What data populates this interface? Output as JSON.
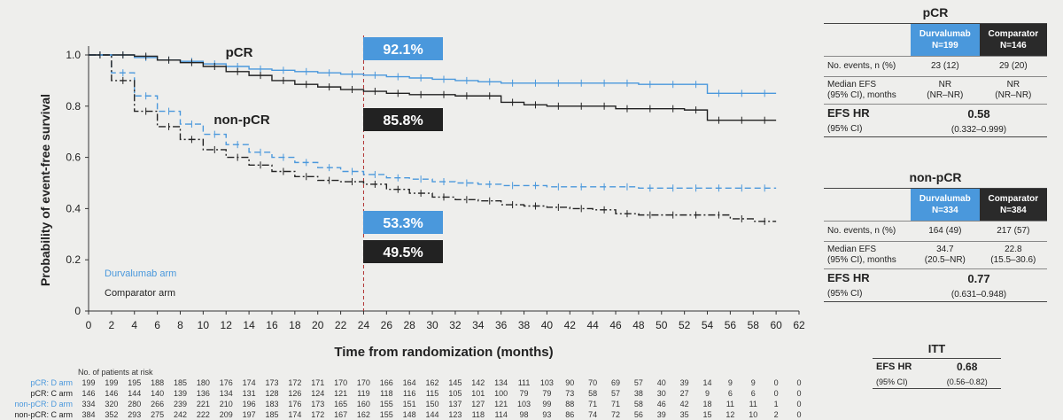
{
  "chart_data": {
    "type": "line",
    "xlabel": "Time from randomization (months)",
    "ylabel": "Probability of event-free survival",
    "xlim": [
      0,
      62
    ],
    "ylim": [
      0,
      1.0
    ],
    "x_ticks": [
      "0",
      "2",
      "4",
      "6",
      "8",
      "10",
      "12",
      "14",
      "16",
      "18",
      "20",
      "22",
      "24",
      "26",
      "28",
      "30",
      "32",
      "34",
      "36",
      "38",
      "40",
      "42",
      "44",
      "46",
      "48",
      "50",
      "52",
      "54",
      "56",
      "58",
      "60",
      "62"
    ],
    "y_ticks": [
      "0",
      "0.2",
      "0.4",
      "0.6",
      "0.8",
      "1.0"
    ],
    "reference_x": 24,
    "group_labels": {
      "pcr": "pCR",
      "nonpcr": "non-pCR"
    },
    "legend": {
      "durvalumab": "Durvalumab arm",
      "comparator": "Comparator arm"
    },
    "colors": {
      "durvalumab": "#4a98dc",
      "comparator": "#222222"
    },
    "callouts": [
      {
        "text": "92.1%",
        "arm": "durvalumab",
        "group": "pCR"
      },
      {
        "text": "85.8%",
        "arm": "comparator",
        "group": "pCR"
      },
      {
        "text": "53.3%",
        "arm": "durvalumab",
        "group": "non-pCR"
      },
      {
        "text": "49.5%",
        "arm": "comparator",
        "group": "non-pCR"
      }
    ],
    "series": [
      {
        "name": "pCR: D arm",
        "arm": "durvalumab",
        "style": "solid",
        "x": [
          0,
          2,
          4,
          6,
          8,
          10,
          12,
          14,
          16,
          18,
          20,
          22,
          24,
          26,
          28,
          30,
          32,
          34,
          36,
          38,
          40,
          42,
          44,
          46,
          48,
          50,
          52,
          54,
          56,
          58,
          60
        ],
        "y": [
          1.0,
          1.0,
          0.99,
          0.98,
          0.975,
          0.965,
          0.955,
          0.945,
          0.94,
          0.935,
          0.93,
          0.925,
          0.921,
          0.915,
          0.91,
          0.905,
          0.9,
          0.895,
          0.89,
          0.89,
          0.89,
          0.89,
          0.89,
          0.89,
          0.885,
          0.885,
          0.885,
          0.85,
          0.85,
          0.85,
          0.85
        ]
      },
      {
        "name": "pCR: C arm",
        "arm": "comparator",
        "style": "solid",
        "x": [
          0,
          2,
          4,
          6,
          8,
          10,
          12,
          14,
          16,
          18,
          20,
          22,
          24,
          26,
          28,
          30,
          32,
          34,
          36,
          38,
          40,
          42,
          44,
          46,
          48,
          50,
          52,
          54,
          56,
          58,
          60
        ],
        "y": [
          1.0,
          1.0,
          0.995,
          0.98,
          0.97,
          0.955,
          0.935,
          0.92,
          0.9,
          0.885,
          0.875,
          0.865,
          0.858,
          0.85,
          0.845,
          0.845,
          0.84,
          0.84,
          0.815,
          0.805,
          0.8,
          0.8,
          0.8,
          0.79,
          0.79,
          0.79,
          0.785,
          0.745,
          0.745,
          0.745,
          0.745
        ]
      },
      {
        "name": "non-pCR: D arm",
        "arm": "durvalumab",
        "style": "dashed",
        "x": [
          0,
          2,
          4,
          6,
          8,
          10,
          12,
          14,
          16,
          18,
          20,
          22,
          24,
          26,
          28,
          30,
          32,
          34,
          36,
          38,
          40,
          42,
          44,
          46,
          48,
          50,
          52,
          54,
          56,
          58,
          60
        ],
        "y": [
          1.0,
          0.93,
          0.84,
          0.78,
          0.73,
          0.69,
          0.65,
          0.62,
          0.6,
          0.58,
          0.56,
          0.545,
          0.533,
          0.52,
          0.515,
          0.505,
          0.5,
          0.495,
          0.49,
          0.49,
          0.485,
          0.485,
          0.485,
          0.485,
          0.48,
          0.48,
          0.48,
          0.48,
          0.48,
          0.48,
          0.48
        ]
      },
      {
        "name": "non-pCR: C arm",
        "arm": "comparator",
        "style": "dashdot",
        "x": [
          0,
          2,
          4,
          6,
          8,
          10,
          12,
          14,
          16,
          18,
          20,
          22,
          24,
          26,
          28,
          30,
          32,
          34,
          36,
          38,
          40,
          42,
          44,
          46,
          48,
          50,
          52,
          54,
          56,
          58,
          60
        ],
        "y": [
          1.0,
          0.9,
          0.78,
          0.72,
          0.67,
          0.63,
          0.6,
          0.57,
          0.545,
          0.525,
          0.51,
          0.505,
          0.495,
          0.475,
          0.46,
          0.445,
          0.435,
          0.43,
          0.415,
          0.41,
          0.405,
          0.4,
          0.395,
          0.38,
          0.375,
          0.375,
          0.375,
          0.375,
          0.36,
          0.35,
          0.35
        ]
      }
    ],
    "risk_table": {
      "title": "No. of patients at risk",
      "rows": [
        {
          "label": "pCR: D arm",
          "arm": "durvalumab",
          "values": [
            "199",
            "199",
            "195",
            "188",
            "185",
            "180",
            "176",
            "174",
            "173",
            "172",
            "171",
            "170",
            "170",
            "166",
            "164",
            "162",
            "145",
            "142",
            "134",
            "111",
            "103",
            "90",
            "70",
            "69",
            "57",
            "40",
            "39",
            "14",
            "9",
            "9",
            "0",
            "0"
          ]
        },
        {
          "label": "pCR: C arm",
          "arm": "comparator",
          "values": [
            "146",
            "146",
            "144",
            "140",
            "139",
            "136",
            "134",
            "131",
            "128",
            "126",
            "124",
            "121",
            "119",
            "118",
            "116",
            "115",
            "105",
            "101",
            "100",
            "79",
            "79",
            "73",
            "58",
            "57",
            "38",
            "30",
            "27",
            "9",
            "6",
            "6",
            "0",
            "0"
          ]
        },
        {
          "label": "non-pCR: D arm",
          "arm": "durvalumab",
          "values": [
            "334",
            "320",
            "280",
            "266",
            "239",
            "221",
            "210",
            "196",
            "183",
            "176",
            "173",
            "165",
            "160",
            "155",
            "151",
            "150",
            "137",
            "127",
            "121",
            "103",
            "99",
            "88",
            "71",
            "71",
            "58",
            "46",
            "42",
            "18",
            "11",
            "11",
            "1",
            "0"
          ]
        },
        {
          "label": "non-pCR: C arm",
          "arm": "comparator",
          "values": [
            "384",
            "352",
            "293",
            "275",
            "242",
            "222",
            "209",
            "197",
            "185",
            "174",
            "172",
            "167",
            "162",
            "155",
            "148",
            "144",
            "123",
            "118",
            "114",
            "98",
            "93",
            "86",
            "74",
            "72",
            "56",
            "39",
            "35",
            "15",
            "12",
            "10",
            "2",
            "0"
          ]
        }
      ]
    }
  },
  "panels": {
    "pcr": {
      "title": "pCR",
      "col_d": "Durvalumab",
      "col_d_n": "N=199",
      "col_c": "Comparator",
      "col_c_n": "N=146",
      "events_label": "No. events, n (%)",
      "events_d": "23 (12)",
      "events_c": "29 (20)",
      "median_label1": "Median EFS",
      "median_label2": "(95% CI), months",
      "median_d1": "NR",
      "median_d2": "(NR–NR)",
      "median_c1": "NR",
      "median_c2": "(NR–NR)",
      "hr_label": "EFS HR",
      "hr_value": "0.58",
      "ci_label": "(95% CI)",
      "ci_value": "(0.332–0.999)"
    },
    "nonpcr": {
      "title": "non-pCR",
      "col_d": "Durvalumab",
      "col_d_n": "N=334",
      "col_c": "Comparator",
      "col_c_n": "N=384",
      "events_label": "No. events, n (%)",
      "events_d": "164 (49)",
      "events_c": "217 (57)",
      "median_label1": "Median EFS",
      "median_label2": "(95% CI), months",
      "median_d1": "34.7",
      "median_d2": "(20.5–NR)",
      "median_c1": "22.8",
      "median_c2": "(15.5–30.6)",
      "hr_label": "EFS HR",
      "hr_value": "0.77",
      "ci_label": "(95% CI)",
      "ci_value": "(0.631–0.948)"
    },
    "itt": {
      "title": "ITT",
      "hr_label": "EFS HR",
      "hr_value": "0.68",
      "ci_label": "(95% CI)",
      "ci_value": "(0.56–0.82)"
    }
  }
}
